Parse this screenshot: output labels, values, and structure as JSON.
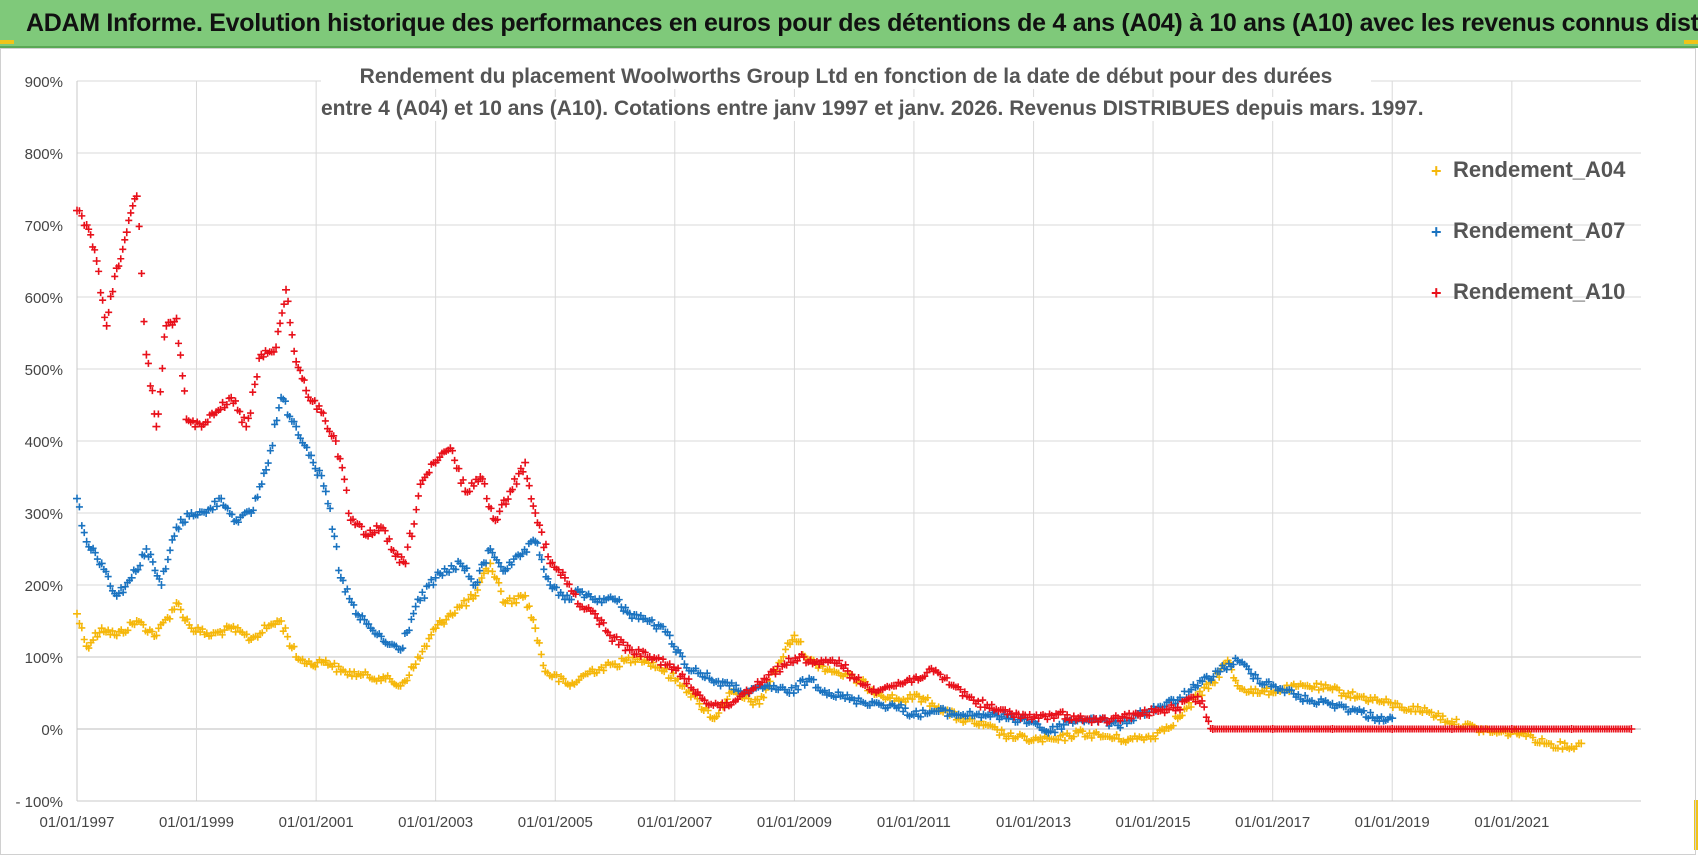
{
  "header": {
    "title": "ADAM Informe. Evolution historique des performances en euros pour des détentions de 4 ans (A04) à 10 ans (A10) avec les revenus connus distribués"
  },
  "chart_data": {
    "type": "scatter",
    "title_line1": "Rendement du placement Woolworths Group Ltd en fonction de la date de début pour des durées",
    "title_line2": "entre 4 (A04) et 10 ans (A10).  Cotations entre janv 1997 et janv. 2026. Revenus DISTRIBUES depuis mars. 1997.",
    "xlabel": "",
    "ylabel": "",
    "x_ticks": [
      "01/01/1997",
      "01/01/1999",
      "01/01/2001",
      "01/01/2003",
      "01/01/2005",
      "01/01/2007",
      "01/01/2009",
      "01/01/2011",
      "01/01/2013",
      "01/01/2015",
      "01/01/2017",
      "01/01/2019",
      "01/01/2021"
    ],
    "y_ticks": [
      "- 100%",
      "0%",
      "100%",
      "200%",
      "300%",
      "400%",
      "500%",
      "600%",
      "700%",
      "800%",
      "900%"
    ],
    "xlim": [
      "1997-01-01",
      "2023-03-01"
    ],
    "ylim": [
      -100,
      900
    ],
    "grid": true,
    "legend_position": "top-right",
    "marker": "+",
    "series": [
      {
        "name": "Rendement_A04",
        "color": "#f5b70a",
        "points": [
          [
            "1997-01-01",
            160
          ],
          [
            "1997-03-01",
            115
          ],
          [
            "1997-06-01",
            140
          ],
          [
            "1997-09-01",
            130
          ],
          [
            "1998-01-01",
            150
          ],
          [
            "1998-05-01",
            130
          ],
          [
            "1998-09-01",
            175
          ],
          [
            "1998-12-01",
            140
          ],
          [
            "1999-04-01",
            130
          ],
          [
            "1999-08-01",
            140
          ],
          [
            "1999-12-01",
            125
          ],
          [
            "2000-04-01",
            145
          ],
          [
            "2000-06-01",
            150
          ],
          [
            "2000-09-01",
            100
          ],
          [
            "2000-12-01",
            90
          ],
          [
            "2001-03-01",
            95
          ],
          [
            "2001-06-01",
            80
          ],
          [
            "2001-10-01",
            75
          ],
          [
            "2002-03-01",
            70
          ],
          [
            "2002-06-01",
            60
          ],
          [
            "2002-09-01",
            90
          ],
          [
            "2003-01-01",
            140
          ],
          [
            "2003-04-01",
            160
          ],
          [
            "2003-09-01",
            185
          ],
          [
            "2003-12-01",
            230
          ],
          [
            "2004-03-01",
            175
          ],
          [
            "2004-07-01",
            185
          ],
          [
            "2004-09-01",
            140
          ],
          [
            "2004-11-01",
            80
          ],
          [
            "2005-04-01",
            60
          ],
          [
            "2005-08-01",
            80
          ],
          [
            "2006-01-01",
            90
          ],
          [
            "2006-06-01",
            100
          ],
          [
            "2006-10-01",
            85
          ],
          [
            "2007-03-01",
            60
          ],
          [
            "2007-06-01",
            35
          ],
          [
            "2007-09-01",
            15
          ],
          [
            "2007-12-01",
            50
          ],
          [
            "2008-06-01",
            35
          ],
          [
            "2008-09-01",
            80
          ],
          [
            "2009-01-01",
            130
          ],
          [
            "2009-04-01",
            95
          ],
          [
            "2009-09-01",
            80
          ],
          [
            "2010-01-01",
            70
          ],
          [
            "2010-06-01",
            50
          ],
          [
            "2010-10-01",
            40
          ],
          [
            "2011-02-01",
            45
          ],
          [
            "2011-06-01",
            30
          ],
          [
            "2011-10-01",
            15
          ],
          [
            "2012-03-01",
            5
          ],
          [
            "2012-08-01",
            -10
          ],
          [
            "2013-01-01",
            -15
          ],
          [
            "2013-06-01",
            -15
          ],
          [
            "2013-10-01",
            -5
          ],
          [
            "2014-03-01",
            -10
          ],
          [
            "2014-08-01",
            -15
          ],
          [
            "2015-01-01",
            -10
          ],
          [
            "2015-06-01",
            15
          ],
          [
            "2015-10-01",
            45
          ],
          [
            "2016-01-01",
            65
          ],
          [
            "2016-04-01",
            95
          ],
          [
            "2016-06-01",
            60
          ],
          [
            "2016-10-01",
            50
          ],
          [
            "2017-03-01",
            55
          ],
          [
            "2017-08-01",
            60
          ],
          [
            "2018-01-01",
            55
          ],
          [
            "2018-06-01",
            45
          ],
          [
            "2018-10-01",
            40
          ],
          [
            "2019-03-01",
            30
          ],
          [
            "2019-08-01",
            25
          ],
          [
            "2020-01-01",
            10
          ],
          [
            "2020-06-01",
            0
          ],
          [
            "2020-10-01",
            -5
          ],
          [
            "2021-03-01",
            -5
          ],
          [
            "2021-08-01",
            -20
          ],
          [
            "2022-01-01",
            -25
          ],
          [
            "2022-03-01",
            -20
          ]
        ]
      },
      {
        "name": "Rendement_A07",
        "color": "#1a73c0",
        "points": [
          [
            "1997-01-01",
            320
          ],
          [
            "1997-03-01",
            260
          ],
          [
            "1997-06-01",
            230
          ],
          [
            "1997-09-01",
            185
          ],
          [
            "1997-12-01",
            210
          ],
          [
            "1998-03-01",
            250
          ],
          [
            "1998-06-01",
            200
          ],
          [
            "1998-09-01",
            280
          ],
          [
            "1998-12-01",
            300
          ],
          [
            "1999-03-01",
            300
          ],
          [
            "1999-06-01",
            320
          ],
          [
            "1999-09-01",
            290
          ],
          [
            "1999-12-01",
            300
          ],
          [
            "2000-03-01",
            360
          ],
          [
            "2000-06-01",
            460
          ],
          [
            "2000-09-01",
            420
          ],
          [
            "2000-12-01",
            380
          ],
          [
            "2001-03-01",
            330
          ],
          [
            "2001-06-01",
            210
          ],
          [
            "2001-09-01",
            160
          ],
          [
            "2001-12-01",
            140
          ],
          [
            "2002-03-01",
            120
          ],
          [
            "2002-06-01",
            110
          ],
          [
            "2002-09-01",
            170
          ],
          [
            "2003-01-01",
            210
          ],
          [
            "2003-06-01",
            230
          ],
          [
            "2003-09-01",
            200
          ],
          [
            "2003-12-01",
            250
          ],
          [
            "2004-03-01",
            220
          ],
          [
            "2004-06-01",
            240
          ],
          [
            "2004-09-01",
            260
          ],
          [
            "2004-12-01",
            200
          ],
          [
            "2005-03-01",
            180
          ],
          [
            "2005-06-01",
            190
          ],
          [
            "2005-09-01",
            180
          ],
          [
            "2006-01-01",
            180
          ],
          [
            "2006-04-01",
            160
          ],
          [
            "2006-08-01",
            150
          ],
          [
            "2006-12-01",
            130
          ],
          [
            "2007-03-01",
            90
          ],
          [
            "2007-08-01",
            70
          ],
          [
            "2007-12-01",
            60
          ],
          [
            "2008-04-01",
            50
          ],
          [
            "2008-08-01",
            60
          ],
          [
            "2008-12-01",
            50
          ],
          [
            "2009-04-01",
            70
          ],
          [
            "2009-08-01",
            50
          ],
          [
            "2010-01-01",
            40
          ],
          [
            "2010-06-01",
            35
          ],
          [
            "2010-10-01",
            30
          ],
          [
            "2011-01-01",
            20
          ],
          [
            "2011-06-01",
            25
          ],
          [
            "2011-10-01",
            20
          ],
          [
            "2012-03-01",
            20
          ],
          [
            "2012-08-01",
            15
          ],
          [
            "2013-01-01",
            10
          ],
          [
            "2013-04-01",
            -5
          ],
          [
            "2013-08-01",
            10
          ],
          [
            "2014-01-01",
            15
          ],
          [
            "2014-06-01",
            5
          ],
          [
            "2014-10-01",
            20
          ],
          [
            "2015-02-01",
            30
          ],
          [
            "2015-06-01",
            40
          ],
          [
            "2015-10-01",
            60
          ],
          [
            "2016-02-01",
            80
          ],
          [
            "2016-06-01",
            95
          ],
          [
            "2016-10-01",
            70
          ],
          [
            "2017-03-01",
            55
          ],
          [
            "2017-08-01",
            40
          ],
          [
            "2018-01-01",
            35
          ],
          [
            "2018-06-01",
            25
          ],
          [
            "2018-10-01",
            15
          ],
          [
            "2019-01-01",
            15
          ]
        ]
      },
      {
        "name": "Rendement_A10",
        "color": "#e8101a",
        "points": [
          [
            "1997-01-01",
            720
          ],
          [
            "1997-03-01",
            700
          ],
          [
            "1997-05-01",
            650
          ],
          [
            "1997-07-01",
            560
          ],
          [
            "1997-09-01",
            640
          ],
          [
            "1997-11-01",
            690
          ],
          [
            "1998-01-01",
            740
          ],
          [
            "1998-03-01",
            520
          ],
          [
            "1998-05-01",
            420
          ],
          [
            "1998-07-01",
            560
          ],
          [
            "1998-09-01",
            570
          ],
          [
            "1998-11-01",
            430
          ],
          [
            "1999-02-01",
            420
          ],
          [
            "1999-05-01",
            440
          ],
          [
            "1999-08-01",
            460
          ],
          [
            "1999-11-01",
            420
          ],
          [
            "2000-02-01",
            520
          ],
          [
            "2000-05-01",
            530
          ],
          [
            "2000-07-01",
            610
          ],
          [
            "2000-09-01",
            510
          ],
          [
            "2000-11-01",
            470
          ],
          [
            "2001-02-01",
            440
          ],
          [
            "2001-05-01",
            400
          ],
          [
            "2001-08-01",
            290
          ],
          [
            "2001-11-01",
            270
          ],
          [
            "2002-02-01",
            280
          ],
          [
            "2002-05-01",
            240
          ],
          [
            "2002-07-01",
            230
          ],
          [
            "2002-10-01",
            340
          ],
          [
            "2003-01-01",
            370
          ],
          [
            "2003-04-01",
            390
          ],
          [
            "2003-07-01",
            330
          ],
          [
            "2003-10-01",
            350
          ],
          [
            "2004-01-01",
            290
          ],
          [
            "2004-04-01",
            330
          ],
          [
            "2004-07-01",
            370
          ],
          [
            "2004-09-01",
            300
          ],
          [
            "2004-12-01",
            230
          ],
          [
            "2005-03-01",
            210
          ],
          [
            "2005-06-01",
            170
          ],
          [
            "2005-09-01",
            160
          ],
          [
            "2005-12-01",
            130
          ],
          [
            "2006-04-01",
            110
          ],
          [
            "2006-08-01",
            100
          ],
          [
            "2006-12-01",
            90
          ],
          [
            "2007-03-01",
            70
          ],
          [
            "2007-07-01",
            40
          ],
          [
            "2007-11-01",
            30
          ],
          [
            "2008-03-01",
            50
          ],
          [
            "2008-07-01",
            70
          ],
          [
            "2008-11-01",
            90
          ],
          [
            "2009-02-01",
            100
          ],
          [
            "2009-06-01",
            90
          ],
          [
            "2009-10-01",
            95
          ],
          [
            "2010-01-01",
            70
          ],
          [
            "2010-05-01",
            55
          ],
          [
            "2010-09-01",
            60
          ],
          [
            "2011-01-01",
            70
          ],
          [
            "2011-05-01",
            80
          ],
          [
            "2011-09-01",
            60
          ],
          [
            "2012-01-01",
            40
          ],
          [
            "2012-06-01",
            25
          ],
          [
            "2012-10-01",
            20
          ],
          [
            "2013-02-01",
            15
          ],
          [
            "2013-06-01",
            20
          ],
          [
            "2013-10-01",
            15
          ],
          [
            "2014-02-01",
            10
          ],
          [
            "2014-06-01",
            15
          ],
          [
            "2014-10-01",
            20
          ],
          [
            "2015-02-01",
            25
          ],
          [
            "2015-06-01",
            30
          ],
          [
            "2015-10-01",
            45
          ],
          [
            "2016-01-01",
            0
          ],
          [
            "2017-01-01",
            0
          ],
          [
            "2018-01-01",
            0
          ],
          [
            "2019-01-01",
            0
          ],
          [
            "2020-01-01",
            0
          ],
          [
            "2021-01-01",
            0
          ],
          [
            "2022-01-01",
            0
          ],
          [
            "2023-01-01",
            0
          ]
        ]
      }
    ]
  }
}
